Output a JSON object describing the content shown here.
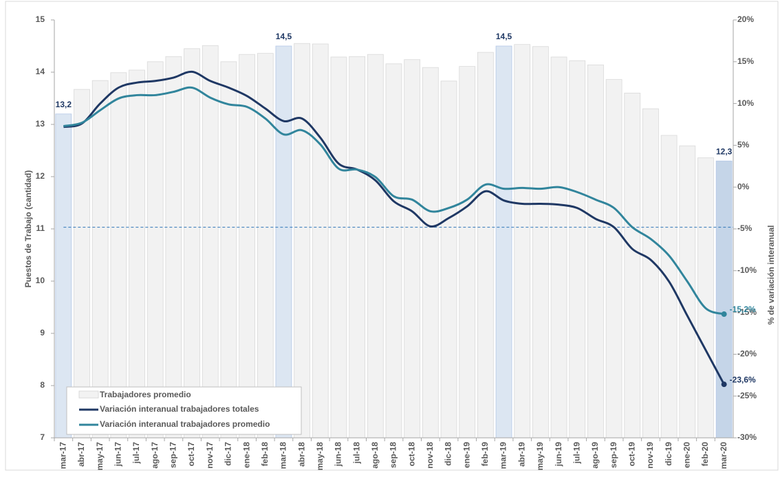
{
  "chart_data": {
    "type": "bar",
    "categories": [
      "mar-17",
      "abr-17",
      "may-17",
      "jun-17",
      "jul-17",
      "ago-17",
      "sep-17",
      "oct-17",
      "nov-17",
      "dic-17",
      "ene-18",
      "feb-18",
      "mar-18",
      "abr-18",
      "may-18",
      "jun-18",
      "jul-18",
      "ago-18",
      "sep-18",
      "oct-18",
      "nov-18",
      "dic-18",
      "ene-19",
      "feb-19",
      "mar-19",
      "abr-19",
      "may-19",
      "jun-19",
      "jul-19",
      "ago-19",
      "sep-19",
      "oct-19",
      "nov-19",
      "dic-19",
      "ene-20",
      "feb-20",
      "mar-20"
    ],
    "y_label": "Puestos de Trabajo (cantidad)",
    "y2_label": "% de variación interanual",
    "ylim": [
      7,
      15
    ],
    "yticks": [
      7,
      8,
      9,
      10,
      11,
      12,
      13,
      14,
      15
    ],
    "y2lim": [
      -30,
      20
    ],
    "y2ticks": [
      {
        "value": -30,
        "label": "-30%"
      },
      {
        "value": -25,
        "label": "-25%"
      },
      {
        "value": -20,
        "label": "-20%"
      },
      {
        "value": -15,
        "label": "-15%"
      },
      {
        "value": -10,
        "label": "-10%"
      },
      {
        "value": -5,
        "label": "-5%"
      },
      {
        "value": 0,
        "label": "0%"
      },
      {
        "value": 5,
        "label": "5%"
      },
      {
        "value": 10,
        "label": "10%"
      },
      {
        "value": 15,
        "label": "15%"
      },
      {
        "value": 20,
        "label": "20%"
      }
    ],
    "reference_y2": -4.8,
    "reference_color": "#2e75b6",
    "bars": {
      "name": "Trabajadores promedio",
      "color": "#f2f2f2",
      "values": [
        13.2,
        13.67,
        13.84,
        13.99,
        14.04,
        14.2,
        14.3,
        14.45,
        14.51,
        14.2,
        14.34,
        14.36,
        14.5,
        14.55,
        14.54,
        14.29,
        14.3,
        14.34,
        14.16,
        14.24,
        14.09,
        13.83,
        14.11,
        14.38,
        14.5,
        14.53,
        14.49,
        14.29,
        14.22,
        14.14,
        13.86,
        13.6,
        13.3,
        12.79,
        12.59,
        12.36,
        12.3
      ],
      "colors": [
        "#dce6f2",
        null,
        null,
        null,
        null,
        null,
        null,
        null,
        null,
        null,
        null,
        null,
        "#dce6f2",
        null,
        null,
        null,
        null,
        null,
        null,
        null,
        null,
        null,
        null,
        null,
        "#dce6f2",
        null,
        null,
        null,
        null,
        null,
        null,
        null,
        null,
        null,
        null,
        null,
        "#c5d5e8"
      ],
      "value_labels": [
        "13,2",
        null,
        null,
        null,
        null,
        null,
        null,
        null,
        null,
        null,
        null,
        null,
        "14,5",
        null,
        null,
        null,
        null,
        null,
        null,
        null,
        null,
        null,
        null,
        null,
        "14,5",
        null,
        null,
        null,
        null,
        null,
        null,
        null,
        null,
        null,
        null,
        null,
        "12,3"
      ]
    },
    "series": [
      {
        "name": "Variación interanual trabajadores totales",
        "color": "#1f3864",
        "axis": "y2",
        "values": [
          7.2,
          7.6,
          10.0,
          11.9,
          12.5,
          12.7,
          13.1,
          13.8,
          12.7,
          11.9,
          10.9,
          9.4,
          7.9,
          8.2,
          5.9,
          2.8,
          2.1,
          0.8,
          -1.7,
          -2.9,
          -4.7,
          -3.7,
          -2.3,
          -0.5,
          -1.6,
          -2.0,
          -2.0,
          -2.1,
          -2.5,
          -3.8,
          -4.8,
          -7.4,
          -8.7,
          -11.3,
          -15.4,
          -19.5,
          -23.6
        ],
        "value_labels": [
          null,
          null,
          null,
          null,
          null,
          null,
          null,
          null,
          null,
          null,
          null,
          null,
          null,
          null,
          null,
          null,
          null,
          null,
          null,
          null,
          null,
          null,
          null,
          null,
          null,
          null,
          null,
          null,
          null,
          null,
          null,
          null,
          null,
          null,
          null,
          null,
          "-23,6%"
        ]
      },
      {
        "name": "Variación interanual trabajadores promedio",
        "color": "#31859c",
        "axis": "y2",
        "values": [
          7.3,
          7.7,
          9.2,
          10.6,
          11.0,
          11.0,
          11.4,
          11.9,
          10.7,
          9.9,
          9.6,
          8.2,
          6.3,
          6.8,
          5.1,
          2.2,
          2.1,
          1.2,
          -1.1,
          -1.5,
          -2.9,
          -2.5,
          -1.5,
          0.3,
          -0.2,
          -0.1,
          -0.2,
          0.0,
          -0.6,
          -1.5,
          -2.5,
          -4.8,
          -6.2,
          -8.2,
          -11.3,
          -14.5,
          -15.2
        ],
        "value_labels": [
          null,
          null,
          null,
          null,
          null,
          null,
          null,
          null,
          null,
          null,
          null,
          null,
          null,
          null,
          null,
          null,
          null,
          null,
          null,
          null,
          null,
          null,
          null,
          null,
          null,
          null,
          null,
          null,
          null,
          null,
          null,
          null,
          null,
          null,
          null,
          null,
          "-15,2%"
        ]
      }
    ]
  }
}
